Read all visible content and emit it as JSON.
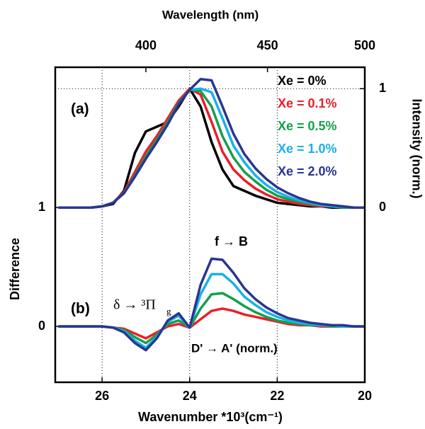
{
  "chart_data": {
    "type": "line",
    "title": "Wavelength (nm)",
    "xlabel": "Wavenumber *10³(cm⁻¹)",
    "ylabel": "Difference",
    "y2label": "Intensity (norm.)",
    "x": [
      27,
      26.75,
      26.5,
      26.25,
      26,
      25.75,
      25.5,
      25.25,
      25,
      24.75,
      24.5,
      24.25,
      24,
      23.75,
      23.5,
      23.25,
      23,
      22.75,
      22.5,
      22.25,
      22,
      21.75,
      21.5,
      21.25,
      21,
      20.75,
      20.5,
      20.25,
      20
    ],
    "xlim": [
      27.07,
      20
    ],
    "xticks": [
      26,
      24,
      22,
      20
    ],
    "x2ticks": [
      400,
      450,
      500
    ],
    "ylim": [
      -0.47,
      2.18
    ],
    "yticks": [
      0,
      1
    ],
    "y2lim": [
      -1.47,
      1.18
    ],
    "y2ticks": [
      0,
      1
    ],
    "grid": true,
    "series": [
      {
        "name": "Xe = 0%",
        "color": "#000000",
        "axis": "y2",
        "values": [
          0,
          0,
          0,
          0,
          0.01,
          0.03,
          0.14,
          0.46,
          0.64,
          0.68,
          0.72,
          0.85,
          1.0,
          0.85,
          0.55,
          0.32,
          0.18,
          0.14,
          0.1,
          0.07,
          0.04,
          0.03,
          0.02,
          0.01,
          0.01,
          0,
          0,
          0,
          0
        ]
      },
      {
        "name": "Xe = 0.1%",
        "color": "#e8202a",
        "axis": "y2",
        "values": [
          0,
          0,
          0,
          0,
          0.01,
          0.04,
          0.13,
          0.3,
          0.47,
          0.6,
          0.75,
          0.9,
          1.0,
          0.95,
          0.72,
          0.47,
          0.32,
          0.23,
          0.16,
          0.11,
          0.07,
          0.05,
          0.03,
          0.02,
          0.01,
          0.01,
          0,
          0,
          0
        ]
      },
      {
        "name": "Xe = 0.5%",
        "color": "#13a04a",
        "axis": "y2",
        "values": [
          0,
          0,
          0,
          0,
          0.01,
          0.04,
          0.12,
          0.27,
          0.43,
          0.57,
          0.72,
          0.88,
          0.99,
          0.98,
          0.85,
          0.6,
          0.42,
          0.3,
          0.22,
          0.15,
          0.1,
          0.07,
          0.05,
          0.03,
          0.02,
          0.01,
          0,
          0,
          0
        ]
      },
      {
        "name": "Xe = 1.0%",
        "color": "#1ab0e8",
        "axis": "y2",
        "values": [
          0,
          0,
          0,
          0,
          0.01,
          0.04,
          0.12,
          0.26,
          0.41,
          0.55,
          0.7,
          0.87,
          0.99,
          1.0,
          0.97,
          0.75,
          0.52,
          0.38,
          0.27,
          0.19,
          0.13,
          0.09,
          0.06,
          0.04,
          0.02,
          0.01,
          0.01,
          0,
          0
        ]
      },
      {
        "name": "Xe = 2.0%",
        "color": "#2b3590",
        "axis": "y2",
        "values": [
          0,
          0,
          0,
          0,
          0.01,
          0.04,
          0.12,
          0.26,
          0.41,
          0.55,
          0.7,
          0.87,
          0.99,
          1.08,
          1.07,
          0.85,
          0.62,
          0.45,
          0.33,
          0.24,
          0.17,
          0.12,
          0.08,
          0.05,
          0.03,
          0.02,
          0.01,
          0,
          0
        ]
      },
      {
        "color": "#e8202a",
        "values": [
          0,
          0,
          0,
          0,
          0,
          -0.01,
          -0.02,
          -0.06,
          -0.1,
          -0.05,
          0,
          0.02,
          -0.01,
          0.06,
          0.13,
          0.15,
          0.13,
          0.1,
          0.08,
          0.06,
          0.04,
          0.02,
          0.01,
          0.01,
          0,
          0,
          0,
          0,
          0
        ]
      },
      {
        "color": "#13a04a",
        "values": [
          0,
          0,
          0,
          0,
          0,
          -0.01,
          -0.03,
          -0.09,
          -0.14,
          -0.07,
          0.02,
          0.05,
          -0.01,
          0.15,
          0.27,
          0.28,
          0.23,
          0.17,
          0.12,
          0.08,
          0.05,
          0.03,
          0.02,
          0.01,
          0.01,
          0,
          0,
          0,
          0
        ]
      },
      {
        "color": "#1ab0e8",
        "values": [
          0,
          0,
          0,
          0,
          0,
          -0.01,
          -0.04,
          -0.12,
          -0.18,
          -0.09,
          0.04,
          0.09,
          -0.01,
          0.27,
          0.44,
          0.44,
          0.36,
          0.25,
          0.18,
          0.12,
          0.08,
          0.05,
          0.03,
          0.02,
          0.01,
          0.01,
          0,
          0,
          0
        ]
      },
      {
        "color": "#2b3590",
        "values": [
          0,
          0,
          0,
          0,
          0,
          -0.01,
          -0.05,
          -0.14,
          -0.2,
          -0.1,
          0.05,
          0.11,
          -0.01,
          0.35,
          0.57,
          0.56,
          0.45,
          0.32,
          0.23,
          0.16,
          0.11,
          0.07,
          0.05,
          0.03,
          0.02,
          0.01,
          0.01,
          0,
          0
        ]
      }
    ],
    "annotations": [
      {
        "text": "(a)"
      },
      {
        "text": "(b)"
      },
      {
        "text": "f → B"
      },
      {
        "text": "D' → A' (norm.)"
      },
      {
        "text": "δ → ³Π",
        "subscript": "g"
      }
    ]
  }
}
